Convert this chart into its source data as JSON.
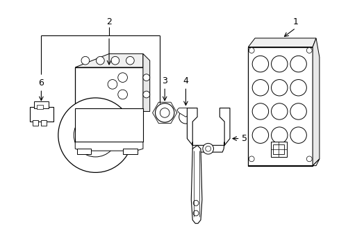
{
  "background_color": "#ffffff",
  "line_color": "#000000",
  "lw": 0.8,
  "label_fontsize": 9,
  "fig_width": 4.89,
  "fig_height": 3.6,
  "dpi": 100
}
